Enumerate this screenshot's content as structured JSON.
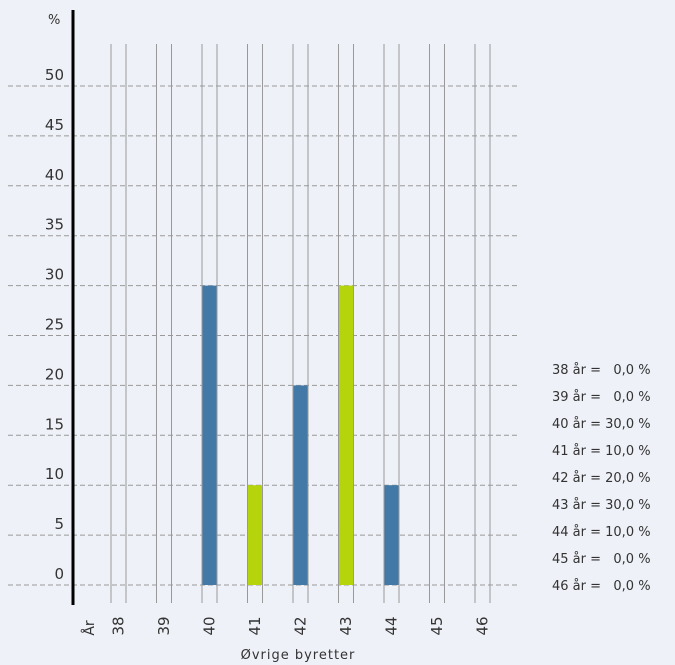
{
  "chart_data": {
    "type": "bar",
    "title": "",
    "xlabel": "Øvrige byretter",
    "ylabel": "%",
    "x_axis_header": "År",
    "categories": [
      "38",
      "39",
      "40",
      "41",
      "42",
      "43",
      "44",
      "45",
      "46"
    ],
    "values": [
      0,
      0,
      30,
      10,
      20,
      30,
      10,
      0,
      0
    ],
    "bar_colors": [
      "#4379a6",
      "#b5d40c",
      "#4379a6",
      "#b5d40c",
      "#4379a6",
      "#b5d40c",
      "#4379a6",
      "#b5d40c",
      "#4379a6"
    ],
    "ylim": [
      0,
      50
    ],
    "yticks": [
      "0",
      "5",
      "10",
      "15",
      "20",
      "25",
      "30",
      "35",
      "40",
      "45",
      "50"
    ],
    "grid": true,
    "legend_position": "right"
  },
  "legend": {
    "items": [
      "38 år =   0,0 %",
      "39 år =   0,0 %",
      "40 år = 30,0 %",
      "41 år = 10,0 %",
      "42 år = 20,0 %",
      "43 år = 30,0 %",
      "44 år = 10,0 %",
      "45 år =   0,0 %",
      "46 år =   0,0 %"
    ]
  },
  "colors": {
    "background": "#eef1f7",
    "grid": "#999999",
    "axis": "#000000",
    "series_blue": "#4379a6",
    "series_green": "#b5d40c"
  }
}
